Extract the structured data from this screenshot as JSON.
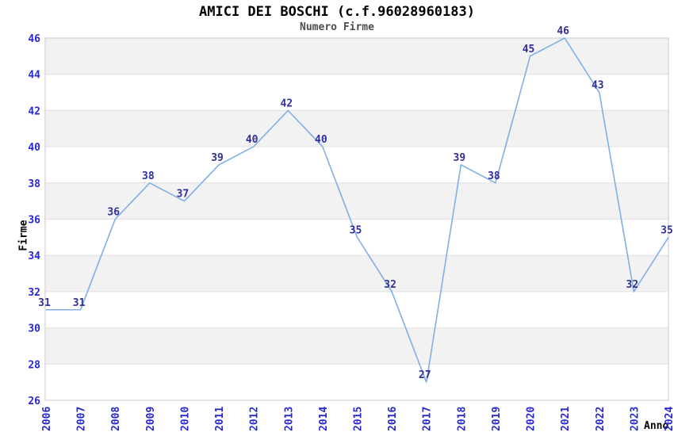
{
  "chart_data": {
    "type": "line",
    "title": "AMICI DEI BOSCHI (c.f.96028960183)",
    "subtitle": "Numero Firme",
    "xlabel": "Anno",
    "ylabel": "Firme",
    "categories": [
      "2006",
      "2007",
      "2008",
      "2009",
      "2010",
      "2011",
      "2012",
      "2013",
      "2014",
      "2015",
      "2016",
      "2017",
      "2018",
      "2019",
      "2020",
      "2021",
      "2022",
      "2023",
      "2024"
    ],
    "values": [
      31,
      31,
      36,
      38,
      37,
      39,
      40,
      42,
      40,
      35,
      32,
      27,
      39,
      38,
      45,
      46,
      43,
      32,
      35
    ],
    "ylim": [
      26,
      46
    ],
    "ytick_step": 2,
    "yticks": [
      26,
      28,
      30,
      32,
      34,
      36,
      38,
      40,
      42,
      44,
      46
    ],
    "grid": "horizontal-bands-alternating",
    "legend": "none",
    "markers": "none",
    "x_tick_rotation_deg": -90,
    "colors": {
      "line": "#7fafe5",
      "tick_labels": "#2828d0",
      "value_labels": "#30309a",
      "band_fill": "#f2f2f2",
      "band_fill_alt": "#ffffff",
      "gridline": "#e0e0e0",
      "plot_border": "#c9c9c9",
      "title": "#000000",
      "subtitle": "#4d4d4d",
      "background": "#ffffff"
    }
  }
}
